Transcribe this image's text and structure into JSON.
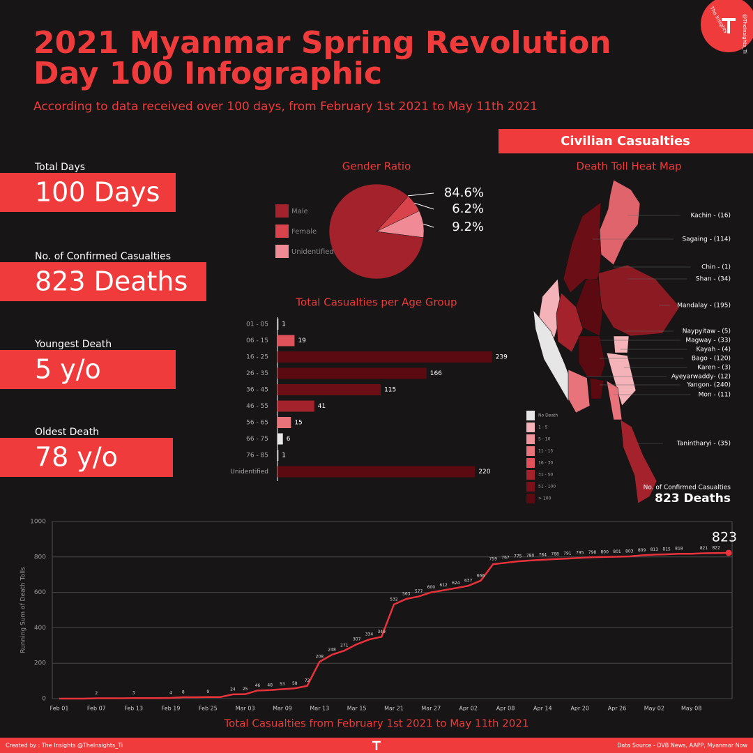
{
  "header": {
    "title_line1": "2021 Myanmar Spring Revolution",
    "title_line2": "Day 100 Infographic",
    "subtitle": "According to data received over 100 days, from February 1st 2021 to May 11th 2021",
    "logo_name": "The Insights",
    "logo_handle": "@TheInsights_Ti"
  },
  "stats": [
    {
      "label": "Total Days",
      "value": "100 Days"
    },
    {
      "label": "No. of Confirmed Casualties",
      "value": "823 Deaths"
    },
    {
      "label": "Youngest Death",
      "value": "5 y/o"
    },
    {
      "label": "Oldest Death",
      "value": "78 y/o"
    }
  ],
  "section_banner": "Civilian Casualties",
  "chart_data": [
    {
      "type": "pie",
      "title": "Gender Ratio",
      "categories": [
        "Male",
        "Female",
        "Unidentified"
      ],
      "values": [
        84.6,
        6.2,
        9.2
      ],
      "value_labels": [
        "84.6%",
        "6.2%",
        "9.2%"
      ],
      "colors": [
        "#a3222b",
        "#d9434b",
        "#f08a95"
      ]
    },
    {
      "type": "bar",
      "orientation": "horizontal",
      "title": "Total Casualties per Age Group",
      "categories": [
        "01 - 05",
        "06 - 15",
        "16 - 25",
        "26 - 35",
        "36 - 45",
        "46 - 55",
        "56 - 65",
        "66 - 75",
        "76 - 85",
        "Unidentified"
      ],
      "values": [
        1,
        19,
        239,
        166,
        115,
        41,
        15,
        6,
        1,
        220
      ],
      "colors": [
        "#e8e8e8",
        "#e0525a",
        "#5a0a10",
        "#5a0a10",
        "#6b0e15",
        "#a3222b",
        "#e8737b",
        "#e8e8e8",
        "#e8e8e8",
        "#5a0a10"
      ],
      "xlim": [
        0,
        240
      ]
    },
    {
      "type": "line",
      "title": "Total Casualties from February 1st 2021 to May 11th 2021",
      "y_label": "Running Sum of Death Tolls",
      "categories": [
        "Feb 01",
        null,
        null,
        "Feb 07",
        null,
        null,
        "Feb 13",
        null,
        null,
        "Feb 19",
        null,
        null,
        "Feb 25",
        null,
        null,
        "Mar 03",
        null,
        null,
        "Mar 09",
        null,
        null,
        "Mar 13",
        null,
        null,
        "Mar 15",
        null,
        null,
        "Mar 21",
        null,
        null,
        "Mar 27",
        null,
        null,
        "Apr 02",
        null,
        null,
        "Apr 08",
        null,
        null,
        "Apr 14",
        null,
        null,
        "Apr 20",
        null,
        null,
        "Apr 26",
        null,
        null,
        "May 02",
        null,
        null,
        "May 08",
        null,
        null,
        null
      ],
      "values": [
        0,
        0,
        0,
        2,
        2,
        2,
        3,
        3,
        3,
        4,
        8,
        8,
        9,
        9,
        24,
        25,
        46,
        48,
        53,
        58,
        72,
        208,
        248,
        271,
        307,
        334,
        349,
        532,
        563,
        577,
        600,
        612,
        624,
        637,
        666,
        759,
        767,
        775,
        780,
        784,
        788,
        791,
        795,
        798,
        800,
        801,
        803,
        809,
        813,
        815,
        818,
        818,
        821,
        822,
        823
      ],
      "color": "#e8333c",
      "ylim": [
        0,
        1000
      ],
      "yticks": [
        0,
        200,
        400,
        600,
        800,
        1000
      ],
      "grid": true
    }
  ],
  "map": {
    "title": "Death Toll Heat Map",
    "regions": [
      "Kachin - (16)",
      "Sagaing - (114)",
      "Chin - (1)",
      "Shan - (34)",
      "Mandalay - (195)",
      "Naypyitaw - (5)",
      "Magway - (33)",
      "Kayah - (4)",
      "Bago - (120)",
      "Karen - (3)",
      "Ayeyarwaddy- (12)",
      "Yangon- (240)",
      "Mon - (11)",
      "Tanintharyi - (35)"
    ],
    "legend": [
      "No Death",
      "1 - 5",
      "5 - 10",
      "11 - 15",
      "16 - 30",
      "31 - 50",
      "51 - 100",
      "> 100"
    ],
    "legend_colors": [
      "#e6e6e6",
      "#f4b3b9",
      "#f0939b",
      "#e8737b",
      "#e0525a",
      "#a3222b",
      "#7a1019",
      "#5a0a10"
    ],
    "total_label": "No. of Confirmed Casualties",
    "total_value": "823 Deaths"
  },
  "footer": {
    "credit": "Created by : The Insights @TheInsights_Ti",
    "source": "Data Source - DVB News, AAPP, Myanmar Now"
  }
}
